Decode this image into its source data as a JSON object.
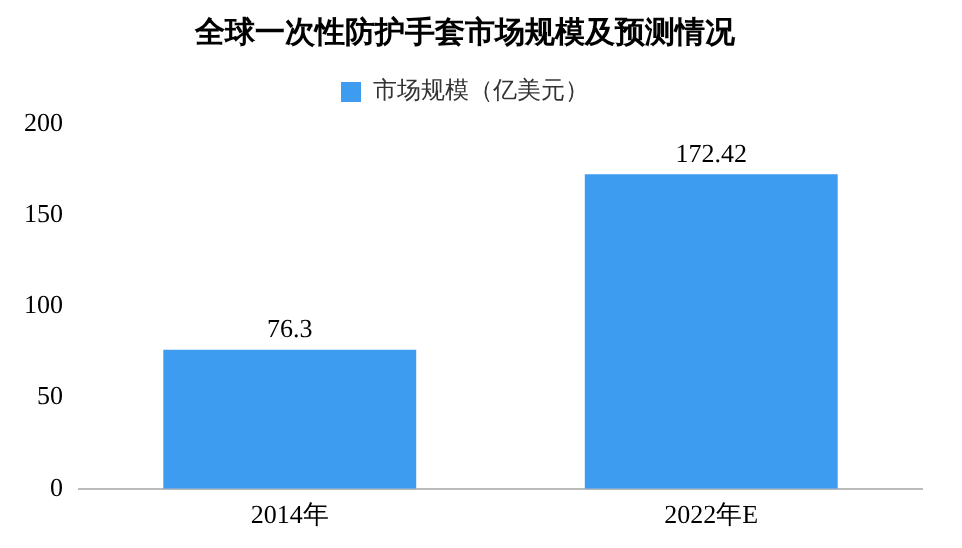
{
  "chart_data": {
    "type": "bar",
    "title": "全球一次性防护手套市场规模及预测情况",
    "categories": [
      "2014年",
      "2022年E"
    ],
    "series": [
      {
        "name": "市场规模（亿美元）",
        "color": "#3d9cf0",
        "values": [
          76.3,
          172.42
        ]
      }
    ],
    "ylim": [
      0,
      200
    ],
    "yticks": [
      0,
      50,
      100,
      150,
      200
    ],
    "grid": false,
    "legend": "top",
    "data_labels": true
  }
}
